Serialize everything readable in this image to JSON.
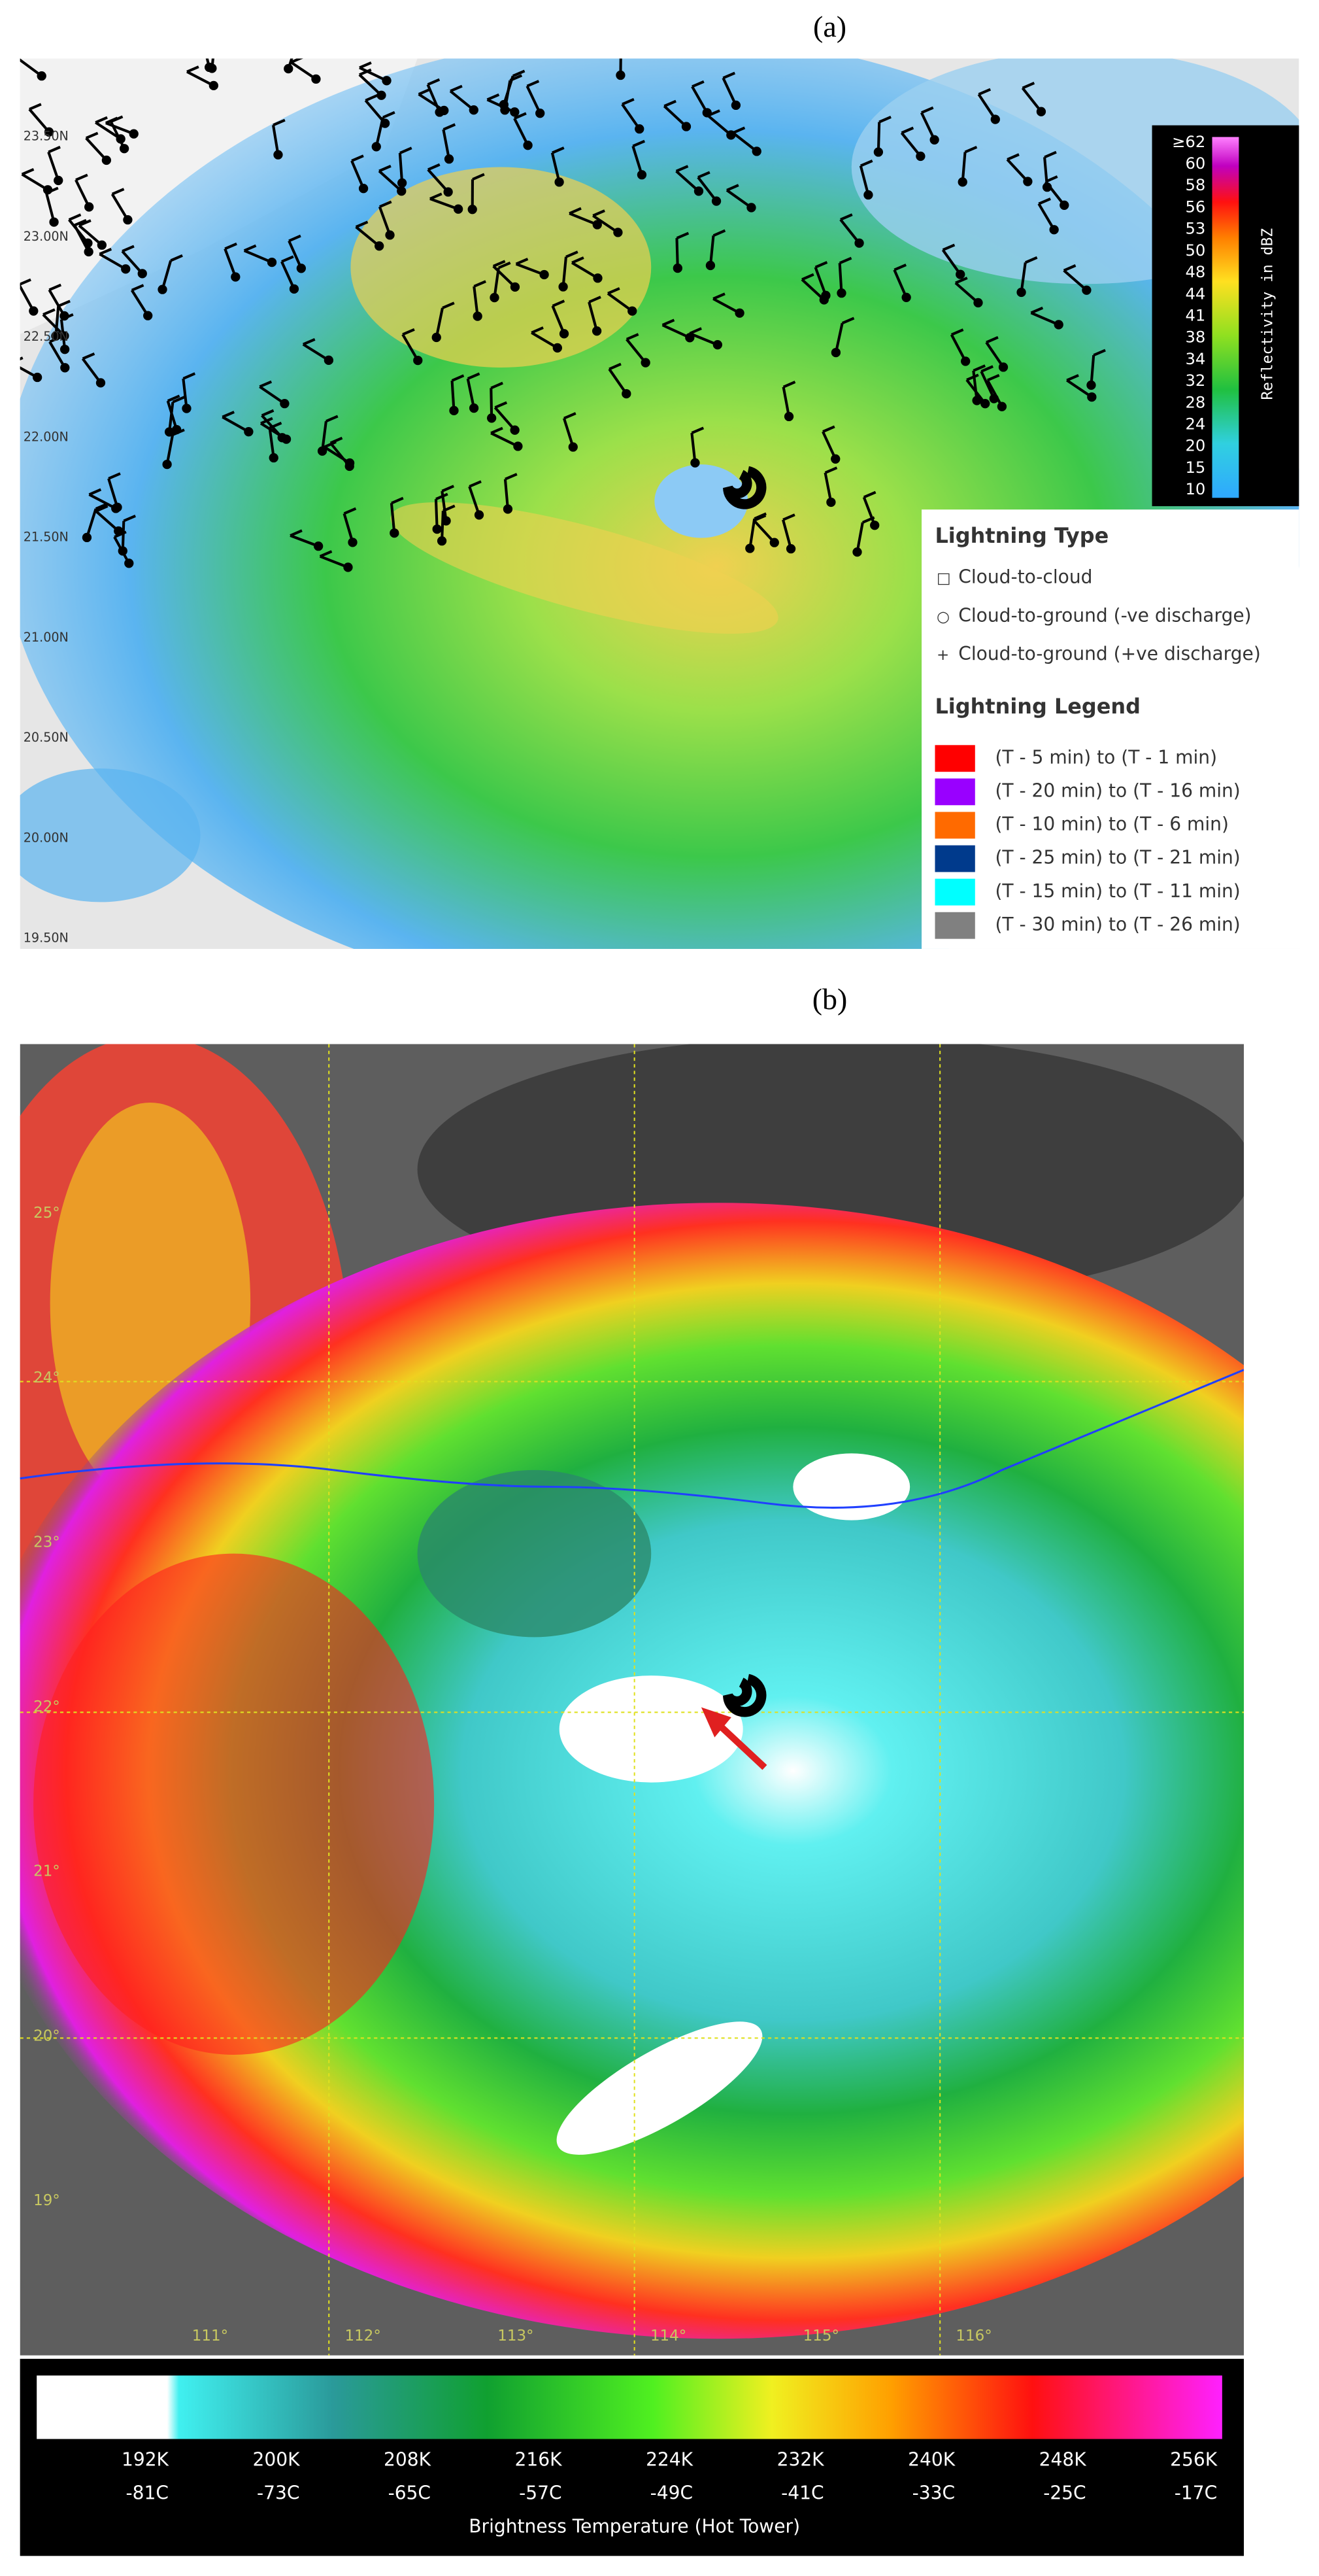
{
  "panel_a": {
    "label": "(a)",
    "latitude_labels": [
      "23.50N",
      "23.00N",
      "22.50N",
      "22.00N",
      "21.50N",
      "21.00N",
      "20.50N",
      "20.00N",
      "19.50N"
    ],
    "reflectivity_scale": {
      "title": "Reflectivity in dBZ",
      "labels": [
        "≥62",
        "60",
        "58",
        "56",
        "53",
        "50",
        "48",
        "44",
        "41",
        "38",
        "34",
        "32",
        "28",
        "24",
        "20",
        "15",
        "10"
      ]
    },
    "lightning_type": {
      "title": "Lightning Type",
      "items": [
        {
          "symbol": "□",
          "label": "Cloud-to-cloud"
        },
        {
          "symbol": "○",
          "label": "Cloud-to-ground (-ve discharge)"
        },
        {
          "symbol": "+",
          "label": "Cloud-to-ground (+ve discharge)"
        }
      ]
    },
    "lightning_legend": {
      "title": "Lightning Legend",
      "items": [
        {
          "label": "(T - 5 min) to (T - 1 min)",
          "color": "#ff0000"
        },
        {
          "label": "(T - 20 min) to (T - 16 min)",
          "color": "#9900ff"
        },
        {
          "label": "(T - 10 min) to (T - 6 min)",
          "color": "#ff6a00"
        },
        {
          "label": "(T - 25 min) to (T - 21 min)",
          "color": "#003a8c"
        },
        {
          "label": "(T - 15 min) to (T - 11 min)",
          "color": "#00ffff"
        },
        {
          "label": "(T - 30 min) to (T - 26 min)",
          "color": "#808080"
        }
      ]
    }
  },
  "panel_b": {
    "label": "(b)",
    "latitude_labels": [
      "25°",
      "24°",
      "23°",
      "22°",
      "21°",
      "20°",
      "19°"
    ],
    "longitude_labels": [
      "111°",
      "112°",
      "113°",
      "114°",
      "115°",
      "116°"
    ],
    "colorbar": {
      "title": "Brightness Temperature (Hot Tower)",
      "labels": [
        {
          "kelvin": "192K",
          "celsius": "-81C"
        },
        {
          "kelvin": "200K",
          "celsius": "-73C"
        },
        {
          "kelvin": "208K",
          "celsius": "-65C"
        },
        {
          "kelvin": "216K",
          "celsius": "-57C"
        },
        {
          "kelvin": "224K",
          "celsius": "-49C"
        },
        {
          "kelvin": "232K",
          "celsius": "-41C"
        },
        {
          "kelvin": "240K",
          "celsius": "-33C"
        },
        {
          "kelvin": "248K",
          "celsius": "-25C"
        },
        {
          "kelvin": "256K",
          "celsius": "-17C"
        }
      ]
    }
  }
}
